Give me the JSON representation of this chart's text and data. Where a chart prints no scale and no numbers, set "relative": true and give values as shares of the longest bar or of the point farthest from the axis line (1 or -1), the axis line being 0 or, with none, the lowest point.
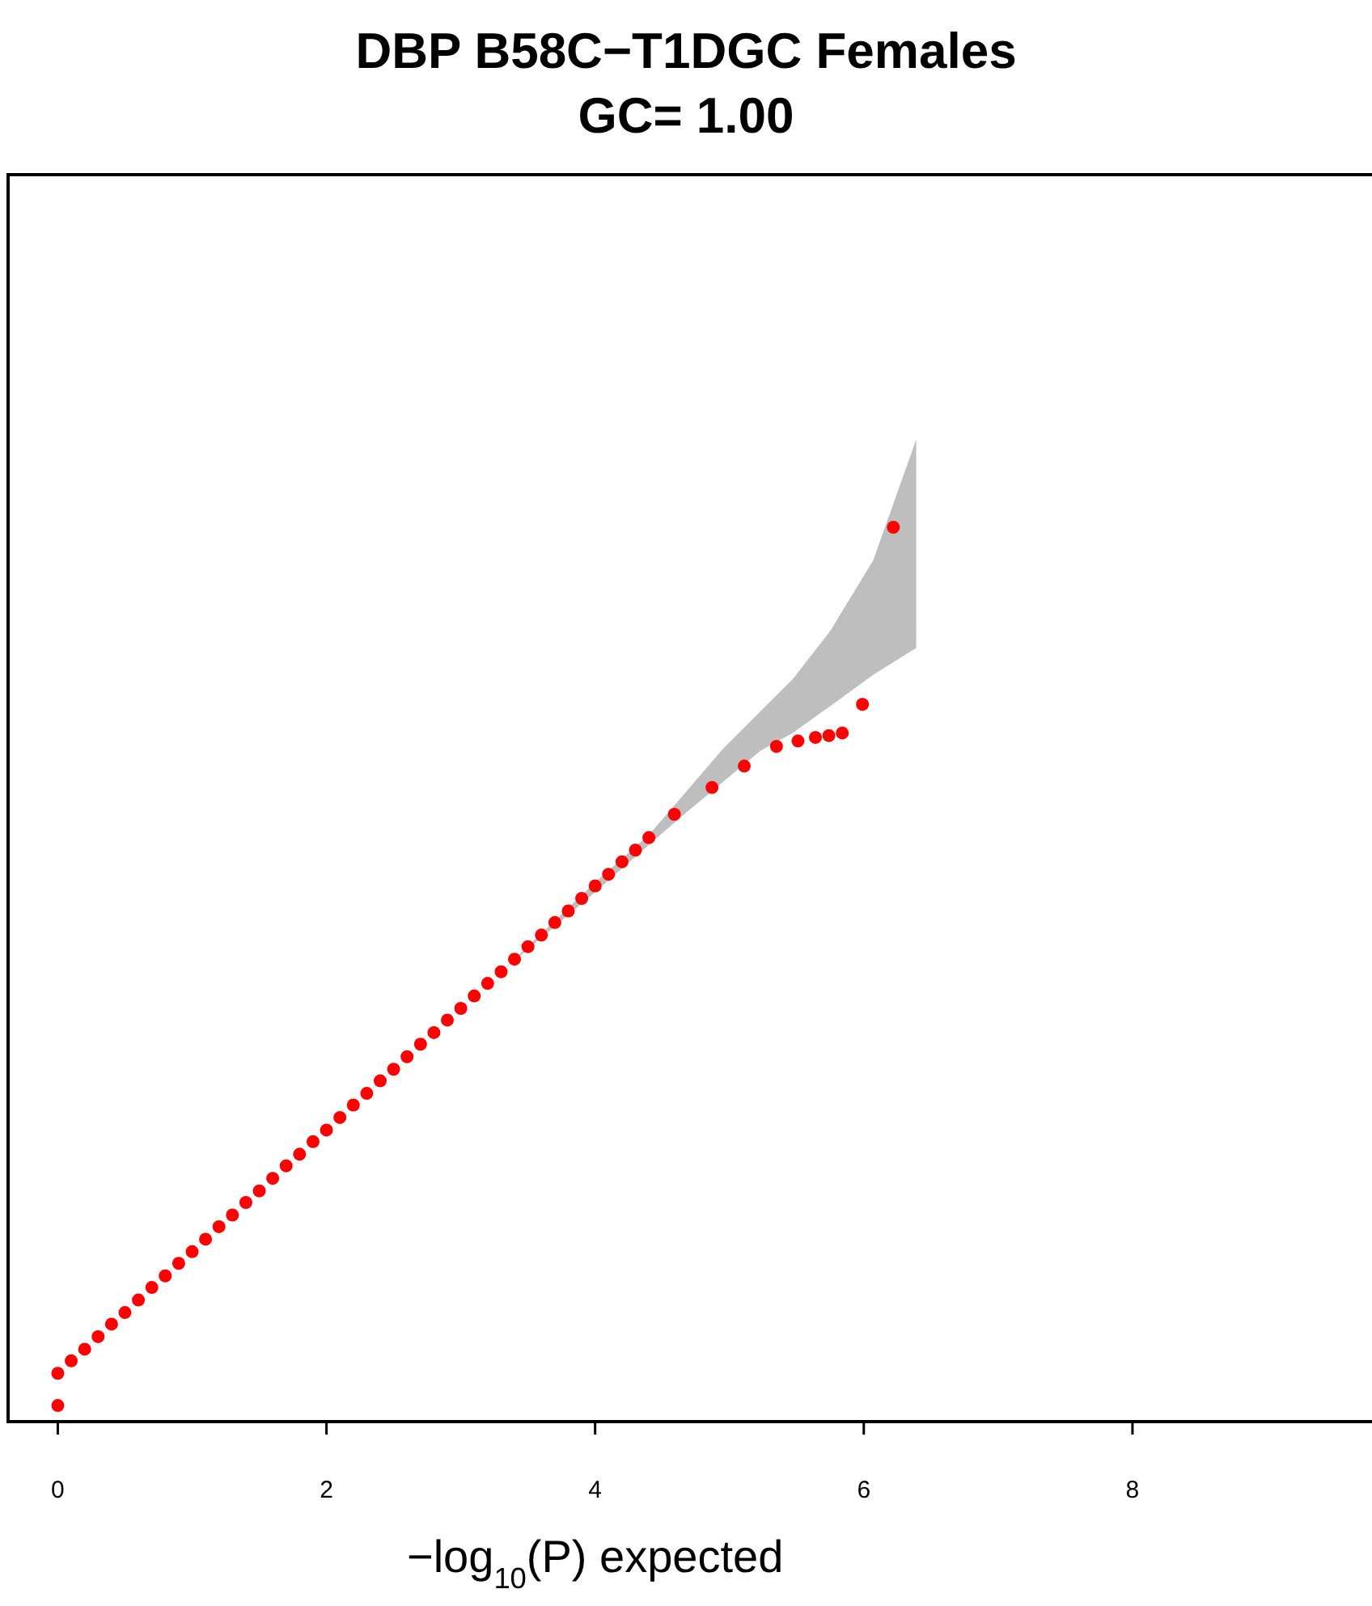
{
  "chart_data": {
    "type": "scatter",
    "title": "DBP B58C−T1DGC Females",
    "subtitle": "GC= 1.00",
    "xlabel": "−log$_{10}$(P) expected",
    "relative": true,
    "tick_labels": "x",
    "marker": "circle",
    "grid": false,
    "xlim": [
      -0.37,
      9.8
    ],
    "xticks": [
      0,
      2,
      4,
      6,
      8
    ],
    "series": [
      {
        "type": "area",
        "color": "#bebebe",
        "x": [
          3.3,
          4.0,
          4.4,
          4.67,
          4.95,
          5.23,
          5.47,
          5.75,
          6.07,
          6.39
        ],
        "values": [
          null,
          null,
          null,
          null,
          null,
          null,
          null,
          null,
          null,
          null
        ],
        "lower": [
          0.503,
          0.592,
          0.645,
          0.68,
          0.715,
          0.75,
          0.77,
          0.8,
          0.835,
          0.865
        ],
        "upper": [
          0.503,
          0.603,
          0.656,
          0.703,
          0.752,
          0.794,
          0.83,
          0.884,
          0.963,
          1.098
        ]
      },
      {
        "color": "#ff0000",
        "x": [
          0,
          0,
          0.1,
          0.2,
          0.3,
          0.4,
          0.5,
          0.6,
          0.7,
          0.8,
          0.9,
          1.0,
          1.1,
          1.2,
          1.3,
          1.4,
          1.5,
          1.6,
          1.7,
          1.8,
          1.9,
          2.0,
          2.1,
          2.2,
          2.3,
          2.4,
          2.5,
          2.6,
          2.7,
          2.8,
          2.9,
          3.0,
          3.1,
          3.2,
          3.3,
          3.4,
          3.5,
          3.6,
          3.7,
          3.8,
          3.9,
          4.0,
          4.1,
          4.2,
          4.3,
          4.4,
          4.59,
          4.87,
          5.11,
          5.35,
          5.51,
          5.64,
          5.74,
          5.84,
          5.99,
          6.22
        ],
        "values": [
          0.018,
          0.054,
          0.068,
          0.081,
          0.095,
          0.109,
          0.122,
          0.136,
          0.15,
          0.163,
          0.177,
          0.19,
          0.204,
          0.218,
          0.231,
          0.245,
          0.258,
          0.272,
          0.286,
          0.299,
          0.313,
          0.326,
          0.34,
          0.354,
          0.367,
          0.381,
          0.394,
          0.408,
          0.422,
          0.435,
          0.449,
          0.462,
          0.476,
          0.49,
          0.503,
          0.517,
          0.531,
          0.544,
          0.558,
          0.571,
          0.585,
          0.599,
          0.612,
          0.626,
          0.639,
          0.653,
          0.679,
          0.709,
          0.733,
          0.755,
          0.761,
          0.765,
          0.767,
          0.77,
          0.802,
          1.0
        ]
      }
    ]
  }
}
